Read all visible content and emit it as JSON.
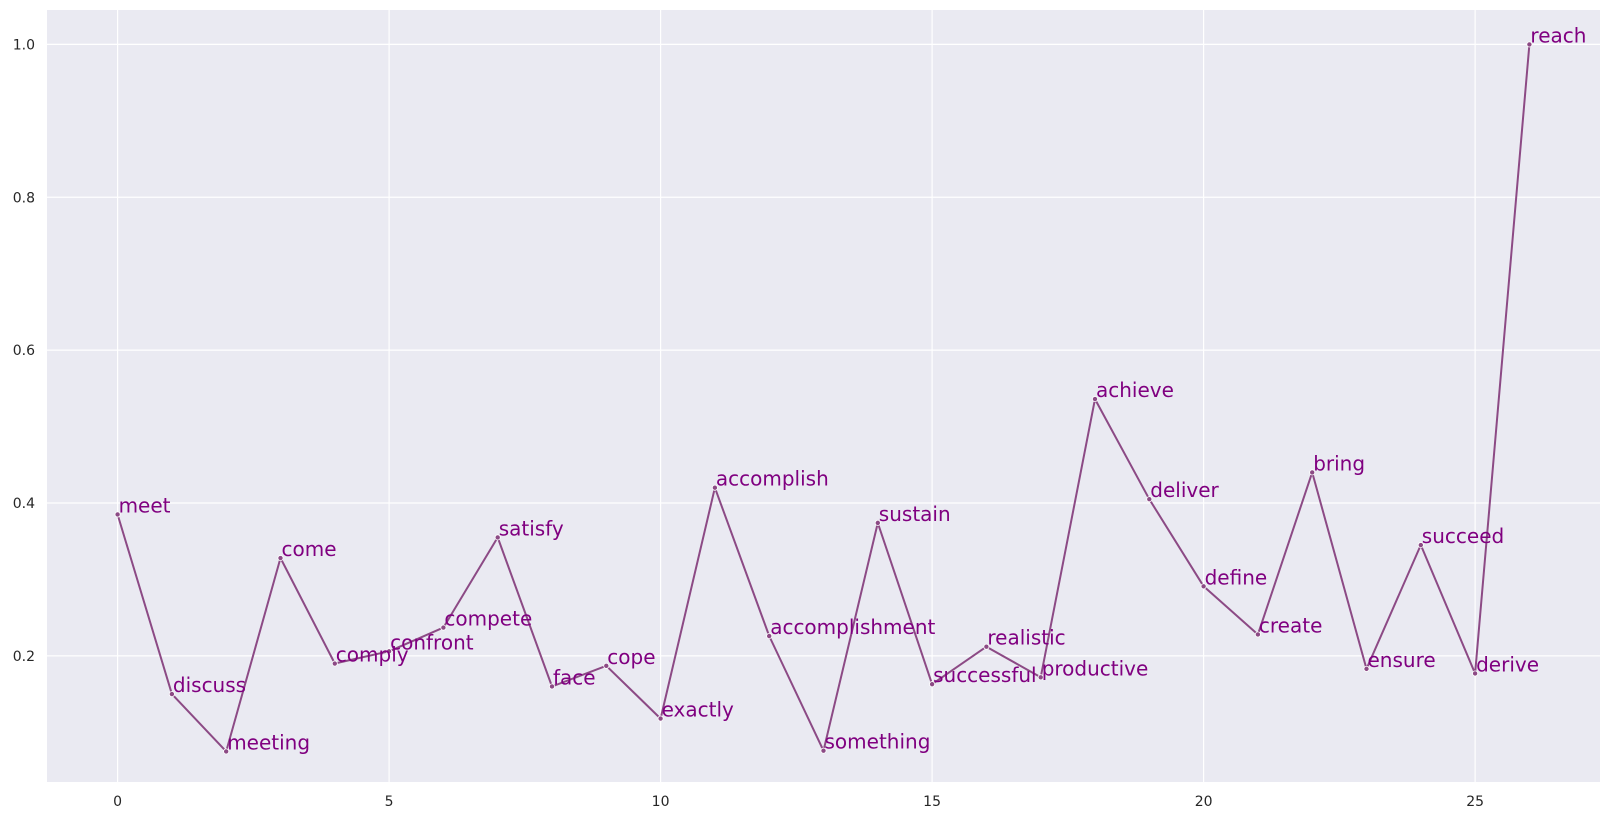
{
  "chart_data": {
    "type": "line",
    "title": "",
    "xlabel": "",
    "ylabel": "",
    "xlim": [
      -1.3,
      27.3
    ],
    "ylim": [
      0.035,
      1.045
    ],
    "xticks": [
      0,
      5,
      10,
      15,
      20,
      25
    ],
    "yticks": [
      0.2,
      0.4,
      0.6,
      0.8,
      1.0
    ],
    "xtick_labels": [
      "0",
      "5",
      "10",
      "15",
      "20",
      "25"
    ],
    "ytick_labels": [
      "0.2",
      "0.4",
      "0.6",
      "0.8",
      "1.0"
    ],
    "grid": true,
    "colors": {
      "background": "#eaeaf2",
      "grid": "#ffffff",
      "line": "#8c4a85",
      "label": "#800080"
    },
    "x": [
      0,
      1,
      2,
      3,
      4,
      5,
      6,
      7,
      8,
      9,
      10,
      11,
      12,
      13,
      14,
      15,
      16,
      17,
      18,
      19,
      20,
      21,
      22,
      23,
      24,
      25,
      26
    ],
    "labels": [
      "meet",
      "discuss",
      "meeting",
      "come",
      "comply",
      "confront",
      "compete",
      "satisfy",
      "face",
      "cope",
      "exactly",
      "accomplish",
      "accomplishment",
      "something",
      "sustain",
      "successful",
      "realistic",
      "productive",
      "achieve",
      "deliver",
      "define",
      "create",
      "bring",
      "ensure",
      "succeed",
      "derive",
      "reach"
    ],
    "values": [
      0.385,
      0.15,
      0.075,
      0.328,
      0.19,
      0.206,
      0.237,
      0.355,
      0.16,
      0.187,
      0.118,
      0.42,
      0.226,
      0.076,
      0.374,
      0.163,
      0.212,
      0.172,
      0.536,
      0.405,
      0.291,
      0.228,
      0.44,
      0.183,
      0.345,
      0.177,
      1.0
    ]
  }
}
